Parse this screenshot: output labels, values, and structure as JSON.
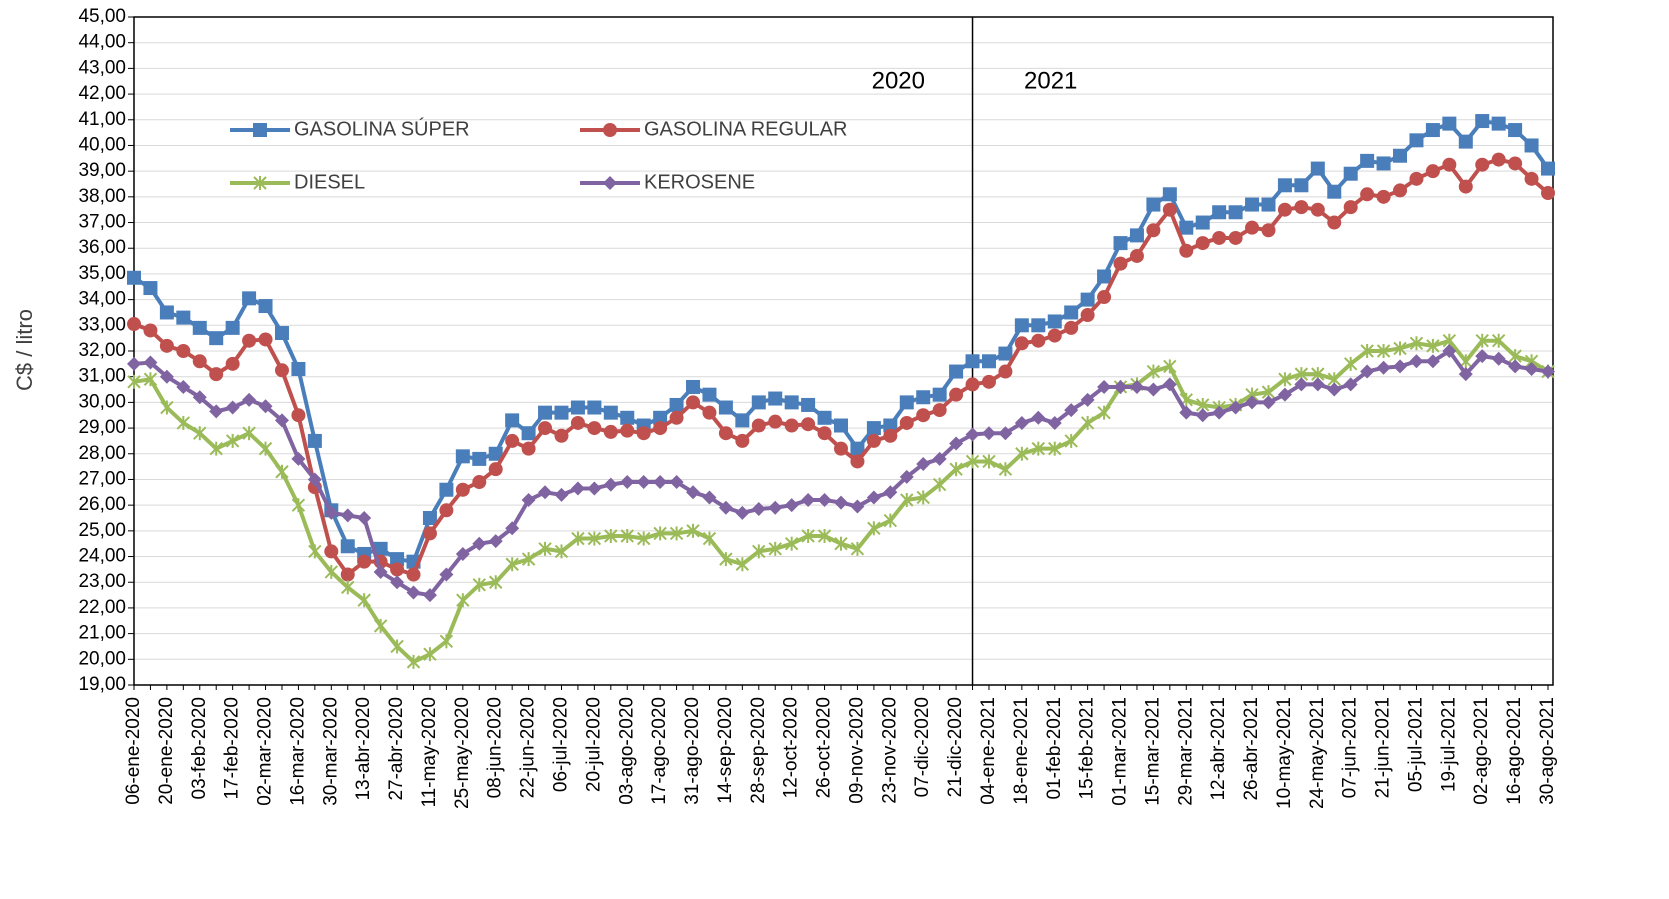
{
  "chart_data": {
    "type": "line",
    "y_label": "C$ / litro",
    "annotations": [
      "2020",
      "2021"
    ],
    "categories": [
      "06-ene-2020",
      null,
      "20-ene-2020",
      null,
      "03-feb-2020",
      null,
      "17-feb-2020",
      null,
      "02-mar-2020",
      null,
      "16-mar-2020",
      null,
      "30-mar-2020",
      null,
      "13-abr-2020",
      null,
      "27-abr-2020",
      null,
      "11-may-2020",
      null,
      "25-may-2020",
      null,
      "08-jun-2020",
      null,
      "22-jun-2020",
      null,
      "06-jul-2020",
      null,
      "20-jul-2020",
      null,
      "03-ago-2020",
      null,
      "17-ago-2020",
      null,
      "31-ago-2020",
      null,
      "14-sep-2020",
      null,
      "28-sep-2020",
      null,
      "12-oct-2020",
      null,
      "26-oct-2020",
      null,
      "09-nov-2020",
      null,
      "23-nov-2020",
      null,
      "07-dic-2020",
      null,
      "21-dic-2020",
      null,
      "04-ene-2021",
      null,
      "18-ene-2021",
      null,
      "01-feb-2021",
      null,
      "15-feb-2021",
      null,
      "01-mar-2021",
      null,
      "15-mar-2021",
      null,
      "29-mar-2021",
      null,
      "12-abr-2021",
      null,
      "26-abr-2021",
      null,
      "10-may-2021",
      null,
      "24-may-2021",
      null,
      "07-jun-2021",
      null,
      "21-jun-2021",
      null,
      "05-jul-2021",
      null,
      "19-jul-2021",
      null,
      "02-ago-2021",
      null,
      "16-ago-2021",
      null,
      "30-ago-2021"
    ],
    "series": [
      {
        "name": "GASOLINA SÚPER",
        "color": "#4a7ebb",
        "marker": "square",
        "values": [
          34.85,
          34.45,
          33.5,
          33.3,
          32.9,
          32.5,
          32.9,
          34.05,
          33.75,
          32.7,
          31.3,
          28.5,
          25.8,
          24.4,
          24.1,
          24.3,
          23.9,
          23.8,
          25.5,
          26.6,
          27.9,
          27.8,
          28.0,
          29.3,
          28.8,
          29.6,
          29.6,
          29.8,
          29.8,
          29.6,
          29.4,
          29.1,
          29.4,
          29.9,
          30.6,
          30.3,
          29.8,
          29.3,
          30.0,
          30.15,
          30.0,
          29.9,
          29.4,
          29.1,
          28.2,
          29.0,
          29.1,
          30.0,
          30.2,
          30.3,
          31.2,
          31.6,
          31.6,
          31.9,
          33.0,
          33.0,
          33.15,
          33.5,
          34.0,
          34.9,
          36.2,
          36.5,
          37.7,
          38.1,
          36.8,
          37.0,
          37.4,
          37.4,
          37.7,
          37.7,
          38.45,
          38.45,
          39.1,
          38.2,
          38.9,
          39.4,
          39.3,
          39.6,
          40.2,
          40.6,
          40.85,
          40.15,
          40.95,
          40.85,
          40.6,
          40.0,
          39.1
        ]
      },
      {
        "name": "GASOLINA REGULAR",
        "color": "#c0504d",
        "marker": "circle",
        "values": [
          33.05,
          32.8,
          32.2,
          32.0,
          31.6,
          31.1,
          31.5,
          32.4,
          32.45,
          31.25,
          29.5,
          26.7,
          24.2,
          23.3,
          23.8,
          23.8,
          23.5,
          23.3,
          24.9,
          25.8,
          26.6,
          26.9,
          27.4,
          28.5,
          28.2,
          29.0,
          28.7,
          29.2,
          29.0,
          28.85,
          28.9,
          28.8,
          29.0,
          29.4,
          30.0,
          29.6,
          28.8,
          28.5,
          29.1,
          29.25,
          29.1,
          29.15,
          28.8,
          28.2,
          27.7,
          28.5,
          28.7,
          29.2,
          29.5,
          29.7,
          30.3,
          30.7,
          30.8,
          31.2,
          32.3,
          32.4,
          32.6,
          32.9,
          33.4,
          34.1,
          35.4,
          35.7,
          36.7,
          37.5,
          35.9,
          36.2,
          36.4,
          36.4,
          36.8,
          36.7,
          37.5,
          37.6,
          37.5,
          37.0,
          37.6,
          38.1,
          38.0,
          38.25,
          38.7,
          39.0,
          39.25,
          38.4,
          39.25,
          39.45,
          39.3,
          38.7,
          38.15
        ]
      },
      {
        "name": "DIESEL",
        "color": "#9bbb59",
        "marker": "asterisk",
        "values": [
          30.8,
          30.9,
          29.8,
          29.2,
          28.8,
          28.2,
          28.5,
          28.8,
          28.2,
          27.3,
          26.0,
          24.2,
          23.4,
          22.8,
          22.3,
          21.3,
          20.5,
          19.9,
          20.2,
          20.7,
          22.3,
          22.9,
          23.0,
          23.7,
          23.9,
          24.3,
          24.2,
          24.7,
          24.7,
          24.8,
          24.8,
          24.7,
          24.9,
          24.9,
          25.0,
          24.7,
          23.9,
          23.7,
          24.2,
          24.3,
          24.5,
          24.8,
          24.8,
          24.5,
          24.3,
          25.1,
          25.4,
          26.2,
          26.3,
          26.8,
          27.4,
          27.7,
          27.7,
          27.4,
          28.0,
          28.2,
          28.2,
          28.5,
          29.2,
          29.6,
          30.6,
          30.7,
          31.2,
          31.4,
          30.1,
          29.9,
          29.8,
          29.9,
          30.3,
          30.4,
          30.9,
          31.1,
          31.1,
          30.9,
          31.5,
          32.0,
          32.0,
          32.1,
          32.3,
          32.2,
          32.4,
          31.6,
          32.4,
          32.4,
          31.8,
          31.6,
          31.2
        ]
      },
      {
        "name": "KEROSENE",
        "color": "#8064a2",
        "marker": "diamond",
        "values": [
          31.5,
          31.55,
          31.0,
          30.6,
          30.2,
          29.65,
          29.8,
          30.1,
          29.85,
          29.3,
          27.8,
          27.0,
          25.7,
          25.6,
          25.5,
          23.4,
          23.0,
          22.6,
          22.5,
          23.3,
          24.1,
          24.5,
          24.6,
          25.1,
          26.2,
          26.5,
          26.4,
          26.65,
          26.65,
          26.8,
          26.9,
          26.9,
          26.9,
          26.9,
          26.5,
          26.3,
          25.9,
          25.7,
          25.85,
          25.9,
          26.0,
          26.2,
          26.2,
          26.1,
          25.95,
          26.3,
          26.5,
          27.1,
          27.6,
          27.8,
          28.4,
          28.75,
          28.8,
          28.8,
          29.2,
          29.4,
          29.2,
          29.7,
          30.1,
          30.6,
          30.6,
          30.6,
          30.5,
          30.7,
          29.6,
          29.5,
          29.6,
          29.8,
          30.0,
          30.0,
          30.3,
          30.7,
          30.7,
          30.5,
          30.7,
          31.2,
          31.35,
          31.4,
          31.6,
          31.6,
          32.0,
          31.1,
          31.8,
          31.7,
          31.4,
          31.3,
          31.2
        ]
      }
    ],
    "ylim": [
      19,
      45
    ],
    "yticks": [
      {
        "value": 19,
        "label": "19,00"
      },
      {
        "value": 20,
        "label": "20,00"
      },
      {
        "value": 21,
        "label": "21,00"
      },
      {
        "value": 22,
        "label": "22,00"
      },
      {
        "value": 23,
        "label": "23,00"
      },
      {
        "value": 24,
        "label": "24,00"
      },
      {
        "value": 25,
        "label": "25,00"
      },
      {
        "value": 26,
        "label": "26,00"
      },
      {
        "value": 27,
        "label": "27,00"
      },
      {
        "value": 28,
        "label": "28,00"
      },
      {
        "value": 29,
        "label": "29,00"
      },
      {
        "value": 30,
        "label": "30,00"
      },
      {
        "value": 31,
        "label": "31,00"
      },
      {
        "value": 32,
        "label": "32,00"
      },
      {
        "value": 33,
        "label": "33,00"
      },
      {
        "value": 34,
        "label": "34,00"
      },
      {
        "value": 35,
        "label": "35,00"
      },
      {
        "value": 36,
        "label": "36,00"
      },
      {
        "value": 37,
        "label": "37,00"
      },
      {
        "value": 38,
        "label": "38,00"
      },
      {
        "value": 39,
        "label": "39,00"
      },
      {
        "value": 40,
        "label": "40,00"
      },
      {
        "value": 41,
        "label": "41,00"
      },
      {
        "value": 42,
        "label": "42,00"
      },
      {
        "value": 43,
        "label": "43,00"
      },
      {
        "value": 44,
        "label": "44,00"
      },
      {
        "value": 45,
        "label": "45,00"
      }
    ],
    "grid": true
  }
}
